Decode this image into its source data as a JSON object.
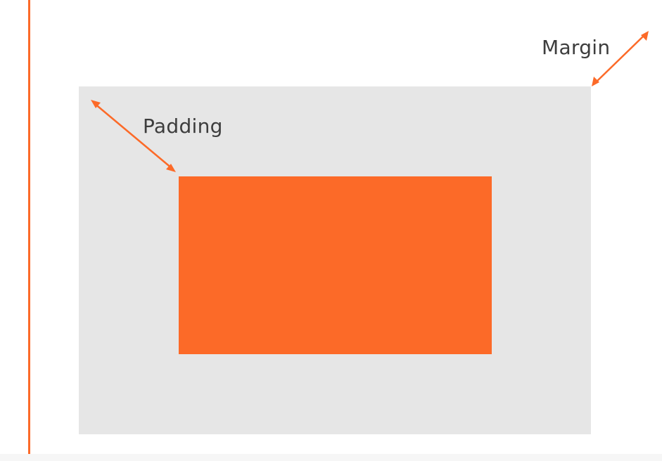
{
  "labels": {
    "padding": "Padding",
    "margin": "Margin"
  },
  "colors": {
    "accent": "#fc6a28",
    "outer_fill": "#e6e6e6",
    "label_text": "#3d3d3d",
    "background": "#ffffff"
  }
}
